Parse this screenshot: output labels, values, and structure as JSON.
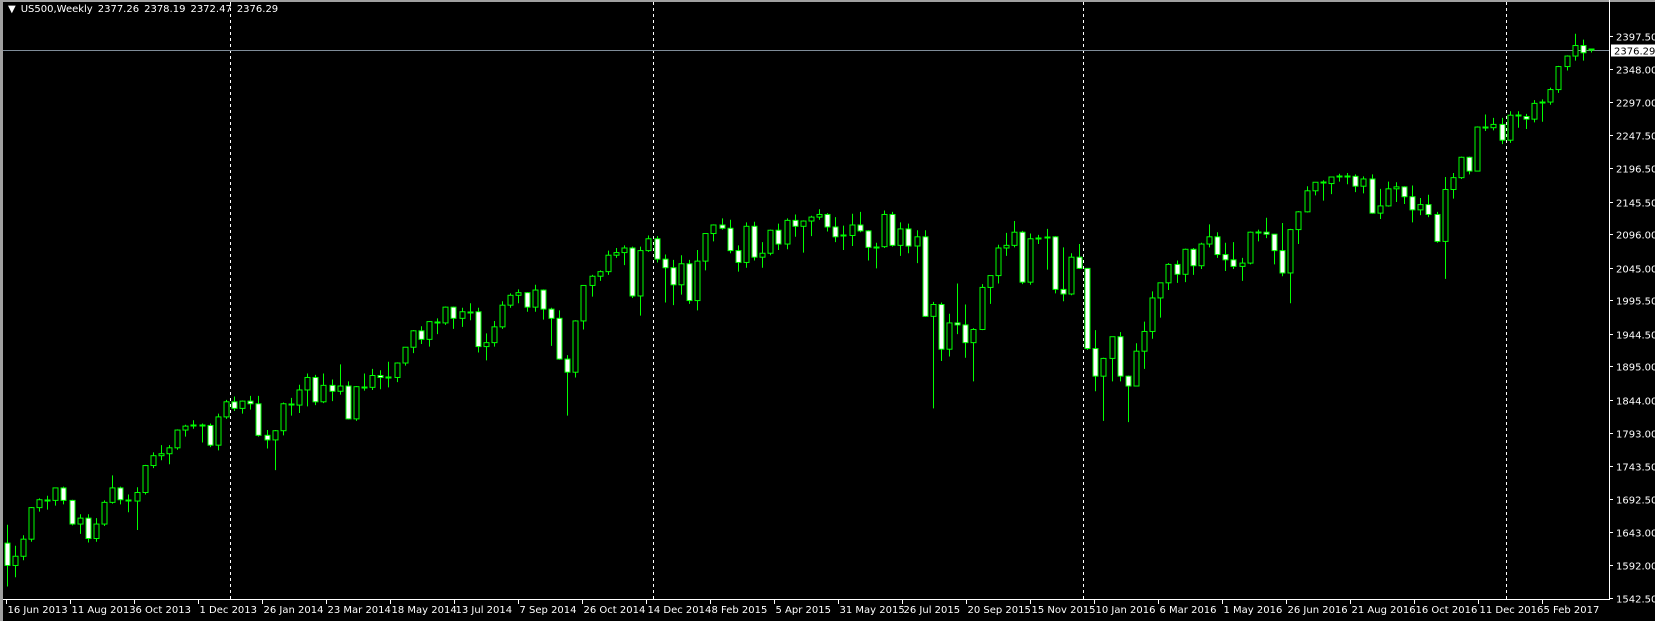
{
  "header": {
    "symbol_period": "US500,Weekly",
    "open": "2377.26",
    "high": "2378.19",
    "low": "2372.47",
    "close": "2376.29",
    "menu_icon": "triangle-down-icon"
  },
  "colors": {
    "background": "#000000",
    "candle_outline": "#00ff00",
    "bull_body": "#000000",
    "bear_body": "#ffffff",
    "axis": "#ffffff",
    "price_line": "#7f8c99",
    "separator": "#ffffff"
  },
  "chart_data": {
    "type": "candlestick",
    "title": "US500,Weekly",
    "ylim": [
      1542.5,
      2397.5
    ],
    "grid": false,
    "period_separators": true,
    "current_price": 2376.29,
    "current_price_label": "2376.29",
    "y_ticks": [
      "2397.50",
      "2348.00",
      "2297.00",
      "2247.50",
      "2196.50",
      "2145.50",
      "2096.00",
      "2045.00",
      "1995.50",
      "1944.50",
      "1895.00",
      "1844.00",
      "1793.00",
      "1743.50",
      "1692.50",
      "1643.00",
      "1592.00",
      "1542.50"
    ],
    "x_ticks": [
      "16 Jun 2013",
      "11 Aug 2013",
      "6 Oct 2013",
      "1 Dec 2013",
      "26 Jan 2014",
      "23 Mar 2014",
      "18 May 2014",
      "13 Jul 2014",
      "7 Sep 2014",
      "26 Oct 2014",
      "14 Dec 2014",
      "8 Feb 2015",
      "5 Apr 2015",
      "31 May 2015",
      "26 Jul 2015",
      "20 Sep 2015",
      "15 Nov 2015",
      "10 Jan 2016",
      "6 Mar 2016",
      "1 May 2016",
      "26 Jun 2016",
      "21 Aug 2016",
      "16 Oct 2016",
      "11 Dec 2016",
      "5 Feb 2017"
    ],
    "ohlc_fields": [
      "open",
      "high",
      "low",
      "close"
    ],
    "candles": [
      [
        1626,
        1654,
        1560,
        1592
      ],
      [
        1592,
        1622,
        1574,
        1606
      ],
      [
        1606,
        1638,
        1600,
        1632
      ],
      [
        1632,
        1681,
        1628,
        1680
      ],
      [
        1680,
        1694,
        1674,
        1692
      ],
      [
        1692,
        1698,
        1677,
        1691
      ],
      [
        1691,
        1710,
        1683,
        1710
      ],
      [
        1710,
        1712,
        1685,
        1691
      ],
      [
        1691,
        1692,
        1653,
        1655
      ],
      [
        1655,
        1670,
        1640,
        1664
      ],
      [
        1664,
        1670,
        1627,
        1633
      ],
      [
        1633,
        1664,
        1628,
        1655
      ],
      [
        1655,
        1691,
        1652,
        1688
      ],
      [
        1688,
        1729,
        1686,
        1710
      ],
      [
        1710,
        1712,
        1685,
        1692
      ],
      [
        1692,
        1700,
        1673,
        1690
      ],
      [
        1690,
        1711,
        1646,
        1703
      ],
      [
        1703,
        1745,
        1700,
        1744
      ],
      [
        1744,
        1764,
        1740,
        1759
      ],
      [
        1759,
        1775,
        1752,
        1762
      ],
      [
        1762,
        1775,
        1746,
        1771
      ],
      [
        1771,
        1799,
        1768,
        1798
      ],
      [
        1798,
        1806,
        1788,
        1804
      ],
      [
        1804,
        1813,
        1800,
        1806
      ],
      [
        1806,
        1808,
        1779,
        1805
      ],
      [
        1805,
        1808,
        1772,
        1775
      ],
      [
        1775,
        1823,
        1767,
        1818
      ],
      [
        1818,
        1844,
        1815,
        1841
      ],
      [
        1841,
        1849,
        1827,
        1831
      ],
      [
        1831,
        1843,
        1823,
        1842
      ],
      [
        1842,
        1850,
        1829,
        1838
      ],
      [
        1838,
        1850,
        1788,
        1790
      ],
      [
        1790,
        1798,
        1770,
        1783
      ],
      [
        1783,
        1798,
        1737,
        1797
      ],
      [
        1797,
        1840,
        1790,
        1838
      ],
      [
        1838,
        1847,
        1820,
        1836
      ],
      [
        1836,
        1867,
        1824,
        1859
      ],
      [
        1859,
        1884,
        1834,
        1878
      ],
      [
        1878,
        1882,
        1836,
        1841
      ],
      [
        1841,
        1884,
        1839,
        1866
      ],
      [
        1866,
        1875,
        1842,
        1857
      ],
      [
        1857,
        1898,
        1852,
        1865
      ],
      [
        1865,
        1872,
        1814,
        1815
      ],
      [
        1815,
        1865,
        1812,
        1864
      ],
      [
        1864,
        1884,
        1858,
        1863
      ],
      [
        1863,
        1891,
        1859,
        1881
      ],
      [
        1881,
        1889,
        1860,
        1878
      ],
      [
        1878,
        1902,
        1863,
        1878
      ],
      [
        1878,
        1901,
        1871,
        1900
      ],
      [
        1900,
        1924,
        1896,
        1924
      ],
      [
        1924,
        1950,
        1915,
        1949
      ],
      [
        1949,
        1956,
        1929,
        1936
      ],
      [
        1936,
        1964,
        1925,
        1963
      ],
      [
        1963,
        1968,
        1944,
        1961
      ],
      [
        1961,
        1986,
        1958,
        1985
      ],
      [
        1985,
        1986,
        1952,
        1968
      ],
      [
        1968,
        1984,
        1955,
        1978
      ],
      [
        1978,
        1991,
        1965,
        1978
      ],
      [
        1978,
        1984,
        1916,
        1925
      ],
      [
        1925,
        1945,
        1904,
        1931
      ],
      [
        1931,
        1964,
        1925,
        1955
      ],
      [
        1955,
        1994,
        1952,
        1988
      ],
      [
        1988,
        2006,
        1984,
        2003
      ],
      [
        2003,
        2012,
        1991,
        2007
      ],
      [
        2007,
        2008,
        1978,
        1985
      ],
      [
        1985,
        2019,
        1978,
        2011
      ],
      [
        2011,
        2012,
        1966,
        1982
      ],
      [
        1982,
        1984,
        1926,
        1968
      ],
      [
        1968,
        1980,
        1905,
        1906
      ],
      [
        1906,
        1912,
        1820,
        1886
      ],
      [
        1886,
        1965,
        1878,
        1964
      ],
      [
        1964,
        2018,
        1951,
        2018
      ],
      [
        2018,
        2034,
        2001,
        2032
      ],
      [
        2032,
        2041,
        2025,
        2039
      ],
      [
        2039,
        2071,
        2034,
        2064
      ],
      [
        2064,
        2075,
        2060,
        2068
      ],
      [
        2068,
        2079,
        2049,
        2075
      ],
      [
        2075,
        2077,
        1999,
        2002
      ],
      [
        2002,
        2077,
        1972,
        2071
      ],
      [
        2071,
        2094,
        2069,
        2089
      ],
      [
        2089,
        2093,
        2053,
        2058
      ],
      [
        2058,
        2065,
        1992,
        2045
      ],
      [
        2045,
        2057,
        1988,
        2019
      ],
      [
        2019,
        2064,
        2004,
        2051
      ],
      [
        2051,
        2057,
        1990,
        1995
      ],
      [
        1995,
        2072,
        1980,
        2055
      ],
      [
        2055,
        2097,
        2041,
        2097
      ],
      [
        2097,
        2111,
        2085,
        2110
      ],
      [
        2110,
        2120,
        2103,
        2105
      ],
      [
        2105,
        2118,
        2067,
        2071
      ],
      [
        2071,
        2079,
        2039,
        2053
      ],
      [
        2053,
        2114,
        2045,
        2108
      ],
      [
        2108,
        2115,
        2056,
        2061
      ],
      [
        2061,
        2084,
        2045,
        2067
      ],
      [
        2067,
        2103,
        2064,
        2102
      ],
      [
        2102,
        2112,
        2072,
        2081
      ],
      [
        2081,
        2120,
        2073,
        2117
      ],
      [
        2117,
        2126,
        2092,
        2108
      ],
      [
        2108,
        2117,
        2068,
        2116
      ],
      [
        2116,
        2124,
        2093,
        2122
      ],
      [
        2122,
        2134,
        2118,
        2126
      ],
      [
        2126,
        2128,
        2100,
        2107
      ],
      [
        2107,
        2122,
        2084,
        2092
      ],
      [
        2092,
        2109,
        2072,
        2094
      ],
      [
        2094,
        2127,
        2078,
        2110
      ],
      [
        2110,
        2130,
        2099,
        2101
      ],
      [
        2101,
        2102,
        2056,
        2076
      ],
      [
        2076,
        2083,
        2044,
        2077
      ],
      [
        2077,
        2132,
        2075,
        2126
      ],
      [
        2126,
        2130,
        2077,
        2079
      ],
      [
        2079,
        2114,
        2063,
        2104
      ],
      [
        2104,
        2112,
        2067,
        2078
      ],
      [
        2078,
        2102,
        2052,
        2092
      ],
      [
        2092,
        2102,
        1970,
        1971
      ],
      [
        1971,
        1993,
        1831,
        1989
      ],
      [
        1989,
        1992,
        1903,
        1921
      ],
      [
        1921,
        1975,
        1910,
        1961
      ],
      [
        1961,
        2021,
        1944,
        1958
      ],
      [
        1958,
        1989,
        1908,
        1931
      ],
      [
        1931,
        1953,
        1872,
        1951
      ],
      [
        1951,
        2020,
        1950,
        2015
      ],
      [
        2015,
        2033,
        1990,
        2033
      ],
      [
        2033,
        2080,
        2021,
        2075
      ],
      [
        2075,
        2098,
        2063,
        2079
      ],
      [
        2079,
        2116,
        2076,
        2099
      ],
      [
        2099,
        2101,
        2020,
        2023
      ],
      [
        2023,
        2097,
        2019,
        2089
      ],
      [
        2089,
        2095,
        2081,
        2090
      ],
      [
        2090,
        2104,
        2042,
        2092
      ],
      [
        2092,
        2093,
        2006,
        2012
      ],
      [
        2012,
        2076,
        1994,
        2005
      ],
      [
        2005,
        2067,
        2003,
        2061
      ],
      [
        2061,
        2081,
        2043,
        2044
      ],
      [
        2044,
        2044,
        1920,
        1922
      ],
      [
        1922,
        1950,
        1857,
        1880
      ],
      [
        1880,
        1908,
        1812,
        1907
      ],
      [
        1907,
        1940,
        1872,
        1940
      ],
      [
        1940,
        1947,
        1872,
        1880
      ],
      [
        1880,
        1881,
        1810,
        1865
      ],
      [
        1865,
        1930,
        1865,
        1918
      ],
      [
        1918,
        1963,
        1891,
        1948
      ],
      [
        1948,
        2009,
        1937,
        1999
      ],
      [
        1999,
        2022,
        1969,
        2022
      ],
      [
        2022,
        2052,
        2011,
        2050
      ],
      [
        2050,
        2056,
        2022,
        2035
      ],
      [
        2035,
        2074,
        2023,
        2073
      ],
      [
        2073,
        2075,
        2034,
        2048
      ],
      [
        2048,
        2083,
        2043,
        2081
      ],
      [
        2081,
        2111,
        2076,
        2092
      ],
      [
        2092,
        2099,
        2060,
        2065
      ],
      [
        2065,
        2083,
        2040,
        2057
      ],
      [
        2057,
        2084,
        2043,
        2047
      ],
      [
        2047,
        2060,
        2025,
        2052
      ],
      [
        2052,
        2100,
        2050,
        2099
      ],
      [
        2099,
        2103,
        2085,
        2099
      ],
      [
        2099,
        2121,
        2090,
        2096
      ],
      [
        2096,
        2096,
        2050,
        2071
      ],
      [
        2071,
        2113,
        2032,
        2037
      ],
      [
        2037,
        2104,
        1991,
        2103
      ],
      [
        2103,
        2131,
        2081,
        2130
      ],
      [
        2130,
        2169,
        2129,
        2162
      ],
      [
        2162,
        2175,
        2155,
        2175
      ],
      [
        2175,
        2178,
        2147,
        2173
      ],
      [
        2173,
        2183,
        2157,
        2183
      ],
      [
        2183,
        2188,
        2176,
        2184
      ],
      [
        2184,
        2189,
        2172,
        2184
      ],
      [
        2184,
        2187,
        2160,
        2169
      ],
      [
        2169,
        2184,
        2158,
        2180
      ],
      [
        2180,
        2187,
        2127,
        2128
      ],
      [
        2128,
        2165,
        2119,
        2139
      ],
      [
        2139,
        2176,
        2138,
        2165
      ],
      [
        2165,
        2175,
        2145,
        2168
      ],
      [
        2168,
        2169,
        2142,
        2153
      ],
      [
        2153,
        2170,
        2114,
        2133
      ],
      [
        2133,
        2151,
        2125,
        2141
      ],
      [
        2141,
        2156,
        2122,
        2126
      ],
      [
        2126,
        2130,
        2083,
        2085
      ],
      [
        2085,
        2183,
        2028,
        2164
      ],
      [
        2164,
        2189,
        2150,
        2182
      ],
      [
        2182,
        2214,
        2180,
        2213
      ],
      [
        2213,
        2214,
        2187,
        2192
      ],
      [
        2192,
        2260,
        2192,
        2259
      ],
      [
        2259,
        2278,
        2253,
        2258
      ],
      [
        2258,
        2273,
        2254,
        2263
      ],
      [
        2263,
        2273,
        2233,
        2239
      ],
      [
        2239,
        2283,
        2235,
        2277
      ],
      [
        2277,
        2283,
        2258,
        2275
      ],
      [
        2275,
        2279,
        2256,
        2271
      ],
      [
        2271,
        2300,
        2266,
        2295
      ],
      [
        2295,
        2301,
        2267,
        2297
      ],
      [
        2297,
        2319,
        2293,
        2316
      ],
      [
        2316,
        2352,
        2311,
        2351
      ],
      [
        2351,
        2368,
        2345,
        2367
      ],
      [
        2367,
        2401,
        2360,
        2383
      ],
      [
        2383,
        2392,
        2360,
        2372
      ],
      [
        2377.26,
        2378.19,
        2372.47,
        2376.29
      ]
    ]
  }
}
